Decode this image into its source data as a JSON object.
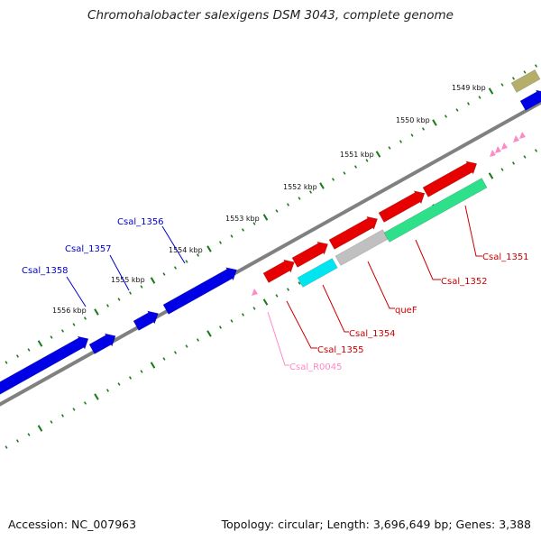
{
  "title": "Chromohalobacter salexigens DSM 3043, complete genome",
  "footer": {
    "accession": "Accession: NC_007963",
    "summary": "Topology: circular; Length: 3,696,649 bp; Genes: 3,388"
  },
  "colors": {
    "backbone": "#808080",
    "tick": "#1a7a1a",
    "forward_gene": "#0000e6",
    "reverse_gene": "#e60000",
    "rna": "#ff88c8",
    "queF": "#c0c0c0",
    "csal1351_band": "#2ee08a",
    "csal1354_band": "#00e5f0",
    "top_right_gene": "#b5ae6a"
  },
  "kbp_labels": [
    "1549 kbp",
    "1550 kbp",
    "1551 kbp",
    "1552 kbp",
    "1553 kbp",
    "1554 kbp",
    "1555 kbp",
    "1556 kbp"
  ],
  "gene_labels": {
    "csal_1356": "Csal_1356",
    "csal_1357": "Csal_1357",
    "csal_1358": "Csal_1358",
    "csal_1351": "Csal_1351",
    "csal_1352": "Csal_1352",
    "queF": "queF",
    "csal_1354": "Csal_1354",
    "csal_1355": "Csal_1355",
    "csal_r0045": "Csal_R0045"
  }
}
